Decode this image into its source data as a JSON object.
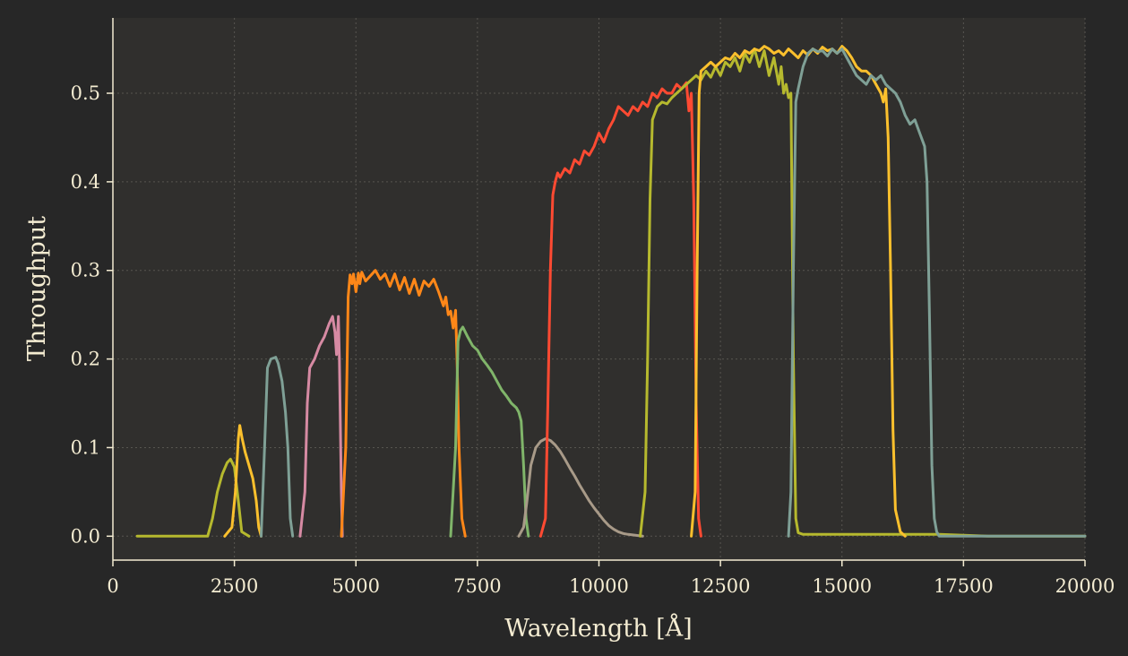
{
  "chart_data": {
    "type": "line",
    "title": "",
    "xlabel": "Wavelength [Å]",
    "ylabel": "Throughput",
    "xlim": [
      0,
      20000
    ],
    "ylim": [
      -0.027,
      0.585
    ],
    "xticks": [
      0,
      2500,
      5000,
      7500,
      10000,
      12500,
      15000,
      17500,
      20000
    ],
    "xtick_labels": [
      "0",
      "2500",
      "5000",
      "7500",
      "10000",
      "12500",
      "15000",
      "17500",
      "20000"
    ],
    "yticks": [
      0.0,
      0.1,
      0.2,
      0.3,
      0.4,
      0.5
    ],
    "ytick_labels": [
      "0.0",
      "0.1",
      "0.2",
      "0.3",
      "0.4",
      "0.5"
    ],
    "grid": true,
    "legend": "none",
    "colors": {
      "background": "#272727",
      "plot_area": "#302f2d",
      "axis": "#f4ecd2",
      "grid": "#575550"
    },
    "series": [
      {
        "color": "#b6b92e",
        "x": [
          500,
          1950,
          2050,
          2150,
          2250,
          2350,
          2420,
          2500,
          2580,
          2650,
          2800
        ],
        "y": [
          0,
          0,
          0.02,
          0.05,
          0.07,
          0.083,
          0.087,
          0.078,
          0.04,
          0.005,
          0
        ]
      },
      {
        "color": "#fbc02d",
        "x": [
          2300,
          2450,
          2520,
          2580,
          2610,
          2660,
          2720,
          2800,
          2880,
          2950,
          3000,
          3050
        ],
        "y": [
          0,
          0.01,
          0.05,
          0.11,
          0.125,
          0.11,
          0.095,
          0.08,
          0.065,
          0.04,
          0.01,
          0
        ]
      },
      {
        "color": "#7fa096",
        "x": [
          3050,
          3120,
          3180,
          3250,
          3350,
          3400,
          3480,
          3550,
          3600,
          3650,
          3700
        ],
        "y": [
          0,
          0.1,
          0.19,
          0.2,
          0.202,
          0.195,
          0.175,
          0.14,
          0.1,
          0.02,
          0
        ]
      },
      {
        "color": "#d68aa3",
        "x": [
          3850,
          3950,
          4000,
          4050,
          4150,
          4250,
          4350,
          4450,
          4520,
          4570,
          4600,
          4640,
          4660,
          4700,
          4720
        ],
        "y": [
          0,
          0.05,
          0.15,
          0.19,
          0.2,
          0.215,
          0.225,
          0.24,
          0.248,
          0.23,
          0.205,
          0.248,
          0.2,
          0.05,
          0
        ]
      },
      {
        "color": "#ff8718",
        "x": [
          4700,
          4790,
          4840,
          4880,
          4920,
          4950,
          5000,
          5050,
          5080,
          5120,
          5200,
          5300,
          5400,
          5500,
          5600,
          5700,
          5800,
          5900,
          6000,
          6100,
          6200,
          6300,
          6400,
          6500,
          6600,
          6700,
          6800,
          6850,
          6900,
          6950,
          7000,
          7050,
          7080,
          7120,
          7180,
          7250
        ],
        "y": [
          0,
          0.1,
          0.27,
          0.295,
          0.285,
          0.296,
          0.276,
          0.297,
          0.285,
          0.298,
          0.288,
          0.294,
          0.3,
          0.29,
          0.296,
          0.282,
          0.296,
          0.278,
          0.292,
          0.274,
          0.29,
          0.272,
          0.288,
          0.282,
          0.29,
          0.276,
          0.26,
          0.27,
          0.25,
          0.254,
          0.235,
          0.255,
          0.2,
          0.1,
          0.02,
          0
        ]
      },
      {
        "color": "#80b56a",
        "x": [
          6950,
          7050,
          7100,
          7150,
          7200,
          7300,
          7400,
          7500,
          7600,
          7700,
          7800,
          7900,
          8000,
          8100,
          8200,
          8300,
          8350,
          8400,
          8450,
          8500,
          8550
        ],
        "y": [
          0,
          0.1,
          0.22,
          0.232,
          0.236,
          0.225,
          0.215,
          0.21,
          0.2,
          0.193,
          0.185,
          0.175,
          0.165,
          0.158,
          0.15,
          0.145,
          0.14,
          0.13,
          0.08,
          0.02,
          0
        ]
      },
      {
        "color": "#a89a88",
        "x": [
          8350,
          8450,
          8520,
          8600,
          8700,
          8800,
          8900,
          9000,
          9100,
          9200,
          9300,
          9400,
          9500,
          9600,
          9700,
          9800,
          9900,
          10000,
          10100,
          10200,
          10300,
          10400,
          10500,
          10600,
          10750,
          10900
        ],
        "y": [
          0,
          0.01,
          0.04,
          0.08,
          0.1,
          0.107,
          0.11,
          0.108,
          0.103,
          0.096,
          0.087,
          0.077,
          0.068,
          0.058,
          0.049,
          0.04,
          0.032,
          0.025,
          0.018,
          0.012,
          0.008,
          0.005,
          0.003,
          0.002,
          0.001,
          0
        ]
      },
      {
        "color": "#ff4a32",
        "x": [
          8800,
          8900,
          8950,
          9000,
          9050,
          9100,
          9150,
          9200,
          9300,
          9400,
          9500,
          9600,
          9700,
          9800,
          9900,
          10000,
          10100,
          10200,
          10300,
          10400,
          10500,
          10600,
          10700,
          10800,
          10900,
          11000,
          11100,
          11200,
          11300,
          11400,
          11500,
          11600,
          11700,
          11800,
          11850,
          11900,
          11950,
          12000,
          12050,
          12100
        ],
        "y": [
          0,
          0.02,
          0.15,
          0.3,
          0.385,
          0.4,
          0.41,
          0.405,
          0.415,
          0.41,
          0.425,
          0.42,
          0.435,
          0.43,
          0.44,
          0.455,
          0.445,
          0.46,
          0.47,
          0.485,
          0.48,
          0.475,
          0.485,
          0.48,
          0.49,
          0.485,
          0.5,
          0.495,
          0.505,
          0.5,
          0.5,
          0.51,
          0.505,
          0.512,
          0.48,
          0.5,
          0.38,
          0.15,
          0.02,
          0
        ]
      },
      {
        "color": "#b6b92e",
        "x": [
          10850,
          10950,
          11000,
          11050,
          11100,
          11200,
          11300,
          11400,
          11500,
          11600,
          11700,
          11800,
          11900,
          12000,
          12100,
          12200,
          12300,
          12400,
          12500,
          12600,
          12700,
          12800,
          12900,
          13000,
          13100,
          13200,
          13300,
          13400,
          13500,
          13600,
          13700,
          13750,
          13800,
          13850,
          13900,
          13950,
          14000,
          14050,
          14100,
          14200,
          14500,
          15000,
          16000,
          17000,
          18000,
          20000
        ],
        "y": [
          0,
          0.05,
          0.2,
          0.38,
          0.47,
          0.485,
          0.49,
          0.488,
          0.495,
          0.5,
          0.505,
          0.51,
          0.515,
          0.52,
          0.515,
          0.525,
          0.518,
          0.53,
          0.52,
          0.535,
          0.53,
          0.54,
          0.525,
          0.545,
          0.535,
          0.55,
          0.53,
          0.548,
          0.52,
          0.54,
          0.51,
          0.53,
          0.5,
          0.51,
          0.495,
          0.5,
          0.2,
          0.02,
          0.004,
          0.002,
          0.002,
          0.002,
          0.002,
          0.002,
          0,
          0
        ]
      },
      {
        "color": "#fbc02d",
        "x": [
          11900,
          11980,
          12020,
          12060,
          12100,
          12200,
          12300,
          12400,
          12500,
          12600,
          12700,
          12800,
          12900,
          13000,
          13100,
          13200,
          13300,
          13400,
          13500,
          13600,
          13700,
          13800,
          13900,
          14000,
          14100,
          14200,
          14300,
          14400,
          14500,
          14600,
          14700,
          14800,
          14900,
          15000,
          15100,
          15200,
          15300,
          15400,
          15500,
          15600,
          15700,
          15800,
          15850,
          15900,
          15950,
          16000,
          16050,
          16100,
          16200,
          16300
        ],
        "y": [
          0,
          0.05,
          0.3,
          0.5,
          0.525,
          0.53,
          0.535,
          0.53,
          0.535,
          0.54,
          0.538,
          0.545,
          0.54,
          0.548,
          0.545,
          0.55,
          0.548,
          0.553,
          0.55,
          0.545,
          0.548,
          0.543,
          0.55,
          0.545,
          0.54,
          0.548,
          0.543,
          0.55,
          0.545,
          0.552,
          0.548,
          0.55,
          0.545,
          0.553,
          0.548,
          0.54,
          0.53,
          0.525,
          0.525,
          0.52,
          0.51,
          0.5,
          0.49,
          0.505,
          0.45,
          0.3,
          0.12,
          0.03,
          0.005,
          0
        ]
      },
      {
        "color": "#7fa096",
        "x": [
          13900,
          13950,
          14000,
          14050,
          14100,
          14200,
          14300,
          14400,
          14500,
          14600,
          14700,
          14800,
          14900,
          15000,
          15100,
          15200,
          15300,
          15400,
          15500,
          15600,
          15700,
          15800,
          15900,
          16000,
          16100,
          16200,
          16300,
          16400,
          16500,
          16600,
          16700,
          16750,
          16800,
          16850,
          16900,
          16950,
          17000,
          17100,
          17500,
          18000,
          20000
        ],
        "y": [
          0,
          0.05,
          0.3,
          0.49,
          0.505,
          0.53,
          0.545,
          0.55,
          0.547,
          0.548,
          0.542,
          0.55,
          0.545,
          0.55,
          0.54,
          0.53,
          0.52,
          0.515,
          0.51,
          0.52,
          0.515,
          0.52,
          0.51,
          0.505,
          0.5,
          0.49,
          0.475,
          0.465,
          0.47,
          0.455,
          0.44,
          0.4,
          0.25,
          0.08,
          0.02,
          0.005,
          0,
          0,
          0,
          0,
          0
        ]
      }
    ]
  }
}
